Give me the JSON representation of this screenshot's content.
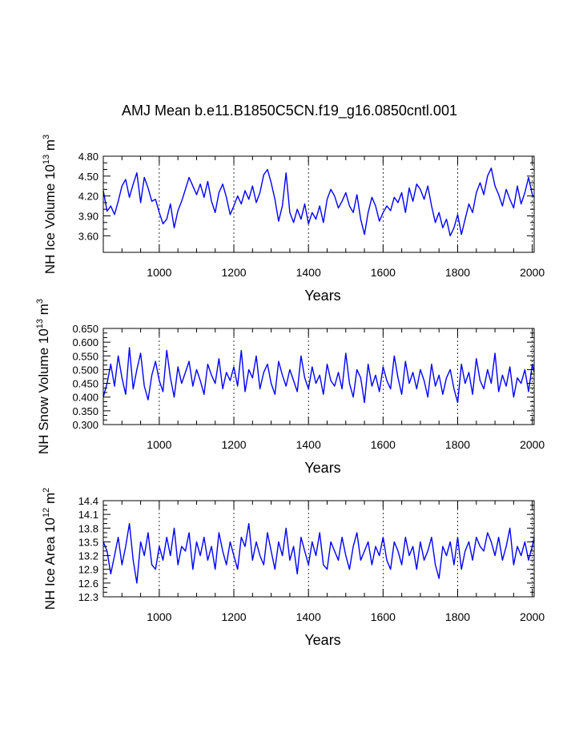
{
  "title": "AMJ Mean b.e11.B1850C5CN.f19_g16.0850cntl.001",
  "colors": {
    "series": "#0000ff",
    "axis": "#000000",
    "grid": "#000000",
    "background": "#ffffff"
  },
  "chart_data": [
    {
      "type": "line",
      "name": "ice-volume",
      "title": "",
      "xlabel": "Years",
      "ylabel_prefix": "NH Ice Volume 10",
      "ylabel_exp": "13",
      "ylabel_unit": " m",
      "ylabel_unit_exp": "3",
      "xlim": [
        850,
        2005
      ],
      "ylim": [
        3.35,
        4.8
      ],
      "yticks": [
        3.6,
        3.9,
        4.2,
        4.5,
        4.8
      ],
      "ytick_labels": [
        "3.60",
        "3.90",
        "4.20",
        "4.50",
        "4.80"
      ],
      "xticks": [
        1000,
        1200,
        1400,
        1600,
        1800,
        2000
      ],
      "xtick_labels": [
        "1000",
        "1200",
        "1400",
        "1600",
        "1800",
        "2000"
      ],
      "grid_x": [
        1000,
        1200,
        1400,
        1600,
        1800,
        2000
      ],
      "series": [
        {
          "name": "NH Ice Volume",
          "x": [
            850,
            860,
            870,
            880,
            890,
            900,
            910,
            920,
            930,
            940,
            950,
            960,
            970,
            980,
            990,
            1000,
            1010,
            1020,
            1030,
            1040,
            1050,
            1060,
            1070,
            1080,
            1090,
            1100,
            1110,
            1120,
            1130,
            1140,
            1150,
            1160,
            1170,
            1180,
            1190,
            1200,
            1210,
            1220,
            1230,
            1240,
            1250,
            1260,
            1270,
            1280,
            1290,
            1300,
            1310,
            1320,
            1330,
            1340,
            1350,
            1360,
            1370,
            1380,
            1390,
            1400,
            1410,
            1420,
            1430,
            1440,
            1450,
            1460,
            1470,
            1480,
            1490,
            1500,
            1510,
            1520,
            1530,
            1540,
            1550,
            1560,
            1570,
            1580,
            1590,
            1600,
            1610,
            1620,
            1630,
            1640,
            1650,
            1660,
            1670,
            1680,
            1690,
            1700,
            1710,
            1720,
            1730,
            1740,
            1750,
            1760,
            1770,
            1780,
            1790,
            1800,
            1810,
            1820,
            1830,
            1840,
            1850,
            1860,
            1870,
            1880,
            1890,
            1900,
            1910,
            1920,
            1930,
            1940,
            1950,
            1960,
            1970,
            1980,
            1990,
            2000,
            2005
          ],
          "values": [
            4.28,
            3.97,
            4.05,
            3.92,
            4.12,
            4.35,
            4.45,
            4.18,
            4.38,
            4.55,
            4.1,
            4.48,
            4.32,
            4.12,
            4.15,
            3.95,
            3.78,
            3.85,
            4.08,
            3.72,
            3.98,
            4.12,
            4.3,
            4.48,
            4.35,
            4.22,
            4.38,
            4.18,
            4.42,
            4.12,
            3.95,
            4.25,
            4.38,
            4.18,
            3.92,
            4.05,
            4.2,
            4.08,
            4.28,
            4.15,
            4.35,
            4.1,
            4.25,
            4.52,
            4.6,
            4.4,
            4.15,
            3.82,
            4.05,
            4.55,
            3.95,
            3.8,
            4.0,
            3.85,
            4.08,
            3.78,
            3.95,
            3.85,
            4.05,
            3.8,
            4.15,
            4.3,
            4.2,
            4.02,
            4.12,
            4.25,
            4.05,
            3.95,
            4.22,
            3.85,
            3.62,
            3.95,
            4.18,
            4.05,
            3.82,
            3.95,
            4.05,
            3.98,
            4.18,
            4.1,
            4.25,
            3.95,
            4.32,
            4.12,
            4.38,
            4.3,
            4.15,
            4.35,
            4.05,
            3.8,
            3.95,
            3.72,
            3.85,
            3.6,
            3.72,
            3.92,
            3.62,
            3.85,
            4.08,
            3.95,
            4.25,
            4.4,
            4.22,
            4.5,
            4.62,
            4.35,
            4.22,
            4.05,
            4.3,
            4.15,
            4.02,
            4.35,
            4.08,
            4.25,
            4.48,
            4.22,
            4.18
          ]
        }
      ]
    },
    {
      "type": "line",
      "name": "snow-volume",
      "title": "",
      "xlabel": "Years",
      "ylabel_prefix": "NH Snow Volume 10",
      "ylabel_exp": "13",
      "ylabel_unit": " m",
      "ylabel_unit_exp": "3",
      "xlim": [
        850,
        2005
      ],
      "ylim": [
        0.3,
        0.65
      ],
      "yticks": [
        0.3,
        0.35,
        0.4,
        0.45,
        0.5,
        0.55,
        0.6,
        0.65
      ],
      "ytick_labels": [
        "0.300",
        "0.350",
        "0.400",
        "0.450",
        "0.500",
        "0.550",
        "0.600",
        "0.650"
      ],
      "xticks": [
        1000,
        1200,
        1400,
        1600,
        1800,
        2000
      ],
      "xtick_labels": [
        "1000",
        "1200",
        "1400",
        "1600",
        "1800",
        "2000"
      ],
      "grid_x": [
        1000,
        1200,
        1400,
        1600,
        1800,
        2000
      ],
      "series": [
        {
          "name": "NH Snow Volume",
          "x": [
            850,
            860,
            870,
            880,
            890,
            900,
            910,
            920,
            930,
            940,
            950,
            960,
            970,
            980,
            990,
            1000,
            1010,
            1020,
            1030,
            1040,
            1050,
            1060,
            1070,
            1080,
            1090,
            1100,
            1110,
            1120,
            1130,
            1140,
            1150,
            1160,
            1170,
            1180,
            1190,
            1200,
            1210,
            1220,
            1230,
            1240,
            1250,
            1260,
            1270,
            1280,
            1290,
            1300,
            1310,
            1320,
            1330,
            1340,
            1350,
            1360,
            1370,
            1380,
            1390,
            1400,
            1410,
            1420,
            1430,
            1440,
            1450,
            1460,
            1470,
            1480,
            1490,
            1500,
            1510,
            1520,
            1530,
            1540,
            1550,
            1560,
            1570,
            1580,
            1590,
            1600,
            1610,
            1620,
            1630,
            1640,
            1650,
            1660,
            1670,
            1680,
            1690,
            1700,
            1710,
            1720,
            1730,
            1740,
            1750,
            1760,
            1770,
            1780,
            1790,
            1800,
            1810,
            1820,
            1830,
            1840,
            1850,
            1860,
            1870,
            1880,
            1890,
            1900,
            1910,
            1920,
            1930,
            1940,
            1950,
            1960,
            1970,
            1980,
            1990,
            2000,
            2005
          ],
          "values": [
            0.4,
            0.45,
            0.52,
            0.44,
            0.55,
            0.47,
            0.41,
            0.58,
            0.43,
            0.5,
            0.56,
            0.44,
            0.39,
            0.48,
            0.53,
            0.46,
            0.42,
            0.57,
            0.47,
            0.4,
            0.51,
            0.45,
            0.49,
            0.53,
            0.44,
            0.5,
            0.46,
            0.41,
            0.52,
            0.48,
            0.45,
            0.54,
            0.43,
            0.49,
            0.46,
            0.51,
            0.44,
            0.57,
            0.42,
            0.5,
            0.47,
            0.55,
            0.43,
            0.49,
            0.52,
            0.45,
            0.41,
            0.53,
            0.48,
            0.44,
            0.5,
            0.46,
            0.42,
            0.55,
            0.47,
            0.43,
            0.51,
            0.45,
            0.48,
            0.41,
            0.52,
            0.46,
            0.44,
            0.49,
            0.43,
            0.56,
            0.45,
            0.4,
            0.5,
            0.47,
            0.38,
            0.52,
            0.44,
            0.48,
            0.42,
            0.51,
            0.46,
            0.43,
            0.55,
            0.47,
            0.41,
            0.53,
            0.45,
            0.49,
            0.43,
            0.5,
            0.46,
            0.4,
            0.52,
            0.44,
            0.48,
            0.41,
            0.47,
            0.5,
            0.43,
            0.38,
            0.52,
            0.45,
            0.49,
            0.41,
            0.54,
            0.46,
            0.43,
            0.5,
            0.45,
            0.56,
            0.42,
            0.48,
            0.44,
            0.51,
            0.4,
            0.47,
            0.45,
            0.5,
            0.42,
            0.52,
            0.49
          ]
        }
      ]
    },
    {
      "type": "line",
      "name": "ice-area",
      "title": "",
      "xlabel": "Years",
      "ylabel_prefix": "NH Ice Area 10",
      "ylabel_exp": "12",
      "ylabel_unit": " m",
      "ylabel_unit_exp": "2",
      "xlim": [
        850,
        2005
      ],
      "ylim": [
        12.3,
        14.4
      ],
      "yticks": [
        12.3,
        12.6,
        12.9,
        13.2,
        13.5,
        13.8,
        14.1,
        14.4
      ],
      "ytick_labels": [
        "12.3",
        "12.6",
        "12.9",
        "13.2",
        "13.5",
        "13.8",
        "14.1",
        "14.4"
      ],
      "xticks": [
        1000,
        1200,
        1400,
        1600,
        1800,
        2000
      ],
      "xtick_labels": [
        "1000",
        "1200",
        "1400",
        "1600",
        "1800",
        "2000"
      ],
      "grid_x": [
        1000,
        1200,
        1400,
        1600,
        1800,
        2000
      ],
      "series": [
        {
          "name": "NH Ice Area",
          "x": [
            850,
            860,
            870,
            880,
            890,
            900,
            910,
            920,
            930,
            940,
            950,
            960,
            970,
            980,
            990,
            1000,
            1010,
            1020,
            1030,
            1040,
            1050,
            1060,
            1070,
            1080,
            1090,
            1100,
            1110,
            1120,
            1130,
            1140,
            1150,
            1160,
            1170,
            1180,
            1190,
            1200,
            1210,
            1220,
            1230,
            1240,
            1250,
            1260,
            1270,
            1280,
            1290,
            1300,
            1310,
            1320,
            1330,
            1340,
            1350,
            1360,
            1370,
            1380,
            1390,
            1400,
            1410,
            1420,
            1430,
            1440,
            1450,
            1460,
            1470,
            1480,
            1490,
            1500,
            1510,
            1520,
            1530,
            1540,
            1550,
            1560,
            1570,
            1580,
            1590,
            1600,
            1610,
            1620,
            1630,
            1640,
            1650,
            1660,
            1670,
            1680,
            1690,
            1700,
            1710,
            1720,
            1730,
            1740,
            1750,
            1760,
            1770,
            1780,
            1790,
            1800,
            1810,
            1820,
            1830,
            1840,
            1850,
            1860,
            1870,
            1880,
            1890,
            1900,
            1910,
            1920,
            1930,
            1940,
            1950,
            1960,
            1970,
            1980,
            1990,
            2000,
            2005
          ],
          "values": [
            13.5,
            13.3,
            12.8,
            13.2,
            13.6,
            13.0,
            13.4,
            13.9,
            13.1,
            12.6,
            13.5,
            13.2,
            13.7,
            13.0,
            12.9,
            13.4,
            13.1,
            13.6,
            13.2,
            13.8,
            13.0,
            13.4,
            13.3,
            13.7,
            12.9,
            13.5,
            13.2,
            13.6,
            13.1,
            13.4,
            12.9,
            13.7,
            13.3,
            13.0,
            13.5,
            13.2,
            12.9,
            13.6,
            13.4,
            13.9,
            13.1,
            13.5,
            13.2,
            13.0,
            13.7,
            13.3,
            12.9,
            13.5,
            13.2,
            13.8,
            13.1,
            13.4,
            12.8,
            13.6,
            13.3,
            13.0,
            13.5,
            13.2,
            13.7,
            13.0,
            12.9,
            13.5,
            13.3,
            13.1,
            13.6,
            13.2,
            12.9,
            13.4,
            13.7,
            13.1,
            13.3,
            13.5,
            13.0,
            13.4,
            13.2,
            13.6,
            13.1,
            12.9,
            13.5,
            13.3,
            13.0,
            13.6,
            13.2,
            13.4,
            12.9,
            13.5,
            13.1,
            13.3,
            13.6,
            13.0,
            12.7,
            13.4,
            13.2,
            13.5,
            13.0,
            13.6,
            12.9,
            13.3,
            13.5,
            13.1,
            13.6,
            13.4,
            13.3,
            13.7,
            13.5,
            13.2,
            13.6,
            13.1,
            13.4,
            13.8,
            13.0,
            13.4,
            13.2,
            13.5,
            13.1,
            13.4,
            13.6
          ]
        }
      ]
    }
  ]
}
